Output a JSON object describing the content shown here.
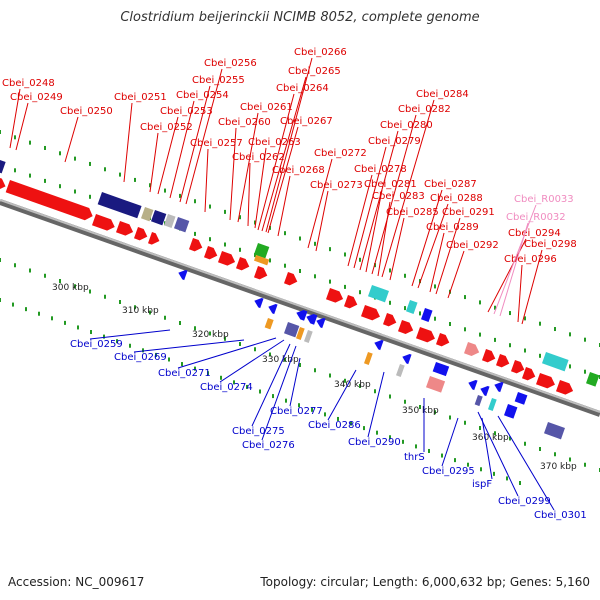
{
  "title": "Clostridium beijerinckii NCIMB 8052, complete genome",
  "footer": {
    "accession": "Accession: NC_009617",
    "summary": "Topology: circular; Length: 6,000,632 bp; Genes: 5,160"
  },
  "colors": {
    "forward_label": "#dd0000",
    "reverse_label": "#0000cc",
    "rna_label": "#f08cc0",
    "forward_arrow": "#ee1111",
    "reverse_arrow": "#1111ee",
    "backbone": "#888888",
    "tick": "#229922",
    "cds_navy": "#1a1a80",
    "cds_slate": "#5656a8",
    "cds_cyan": "#33cccc",
    "cds_green": "#22aa22",
    "cds_orange": "#ee9922",
    "cds_khaki": "#b8b088",
    "cds_gray": "#bbbbbb",
    "cds_pink": "#ee8888"
  },
  "scale_labels": [
    "300 kbp",
    "310 kbp",
    "320 kbp",
    "330 kbp",
    "340 kbp",
    "350 kbp",
    "360 kbp",
    "370 kbp"
  ],
  "forward_genes": [
    "Cbei_0248",
    "Cbei_0249",
    "Cbei_0250",
    "Cbei_0251",
    "Cbei_0252",
    "Cbei_0253",
    "Cbei_0254",
    "Cbei_0255",
    "Cbei_0256",
    "Cbei_0257",
    "Cbei_0260",
    "Cbei_0261",
    "Cbei_0262",
    "Cbei_0263",
    "Cbei_0264",
    "Cbei_0265",
    "Cbei_0266",
    "Cbei_0267",
    "Cbei_0268",
    "Cbei_0272",
    "Cbei_0273",
    "Cbei_0278",
    "Cbei_0279",
    "Cbei_0280",
    "Cbei_0281",
    "Cbei_0282",
    "Cbei_0283",
    "Cbei_0284",
    "Cbei_0285",
    "Cbei_0287",
    "Cbei_0288",
    "Cbei_0289",
    "Cbei_0291",
    "Cbei_0292",
    "Cbei_0294",
    "Cbei_0296",
    "Cbei_0298"
  ],
  "rna_genes": [
    "Cbei_R0033",
    "Cbei_R0032"
  ],
  "reverse_genes": [
    "Cbei_0259",
    "Cbei_0269",
    "Cbei_0271",
    "Cbei_0274",
    "Cbei_0275",
    "Cbei_0276",
    "Cbei_0277",
    "Cbei_0286",
    "Cbei_0290",
    "thrS",
    "Cbei_0295",
    "ispF",
    "Cbei_0299",
    "Cbei_0301"
  ]
}
